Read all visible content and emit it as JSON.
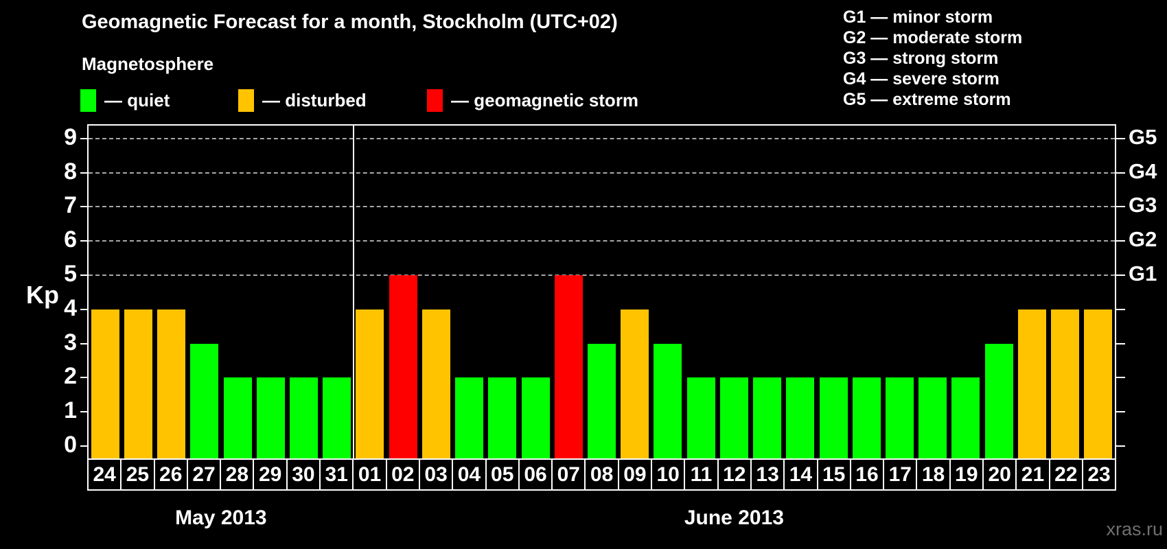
{
  "title": "Geomagnetic Forecast for a month, Stockholm (UTC+02)",
  "watermark": "xras.ru",
  "magnetosphere_legend": {
    "heading": "Magnetosphere",
    "items": [
      {
        "key": "quiet",
        "label": "— quiet"
      },
      {
        "key": "disturbed",
        "label": "— disturbed"
      },
      {
        "key": "storm",
        "label": "— geomagnetic storm"
      }
    ]
  },
  "g_scale_legend": [
    "G1 — minor storm",
    "G2 — moderate storm",
    "G3 — strong storm",
    "G4 — severe storm",
    "G5 — extreme storm"
  ],
  "colors": {
    "quiet": "#00ff00",
    "disturbed": "#ffc300",
    "storm": "#ff0000",
    "background": "#000000",
    "axis": "#ffffff",
    "grid": "#a8a8a8",
    "watermark": "#6f6f6f"
  },
  "chart_data": {
    "type": "bar",
    "title": "Geomagnetic Forecast for a month, Stockholm (UTC+02)",
    "ylabel": "Kp",
    "xlabel": "",
    "ylim": [
      0,
      9
    ],
    "grid": "horizontal-dashed",
    "yticks_left": [
      0,
      1,
      2,
      3,
      4,
      5,
      6,
      7,
      8,
      9
    ],
    "gridlines_kp": [
      5,
      6,
      7,
      8,
      9
    ],
    "right_axis": [
      {
        "kp": 5,
        "label": "G1"
      },
      {
        "kp": 6,
        "label": "G2"
      },
      {
        "kp": 7,
        "label": "G3"
      },
      {
        "kp": 8,
        "label": "G4"
      },
      {
        "kp": 9,
        "label": "G5"
      }
    ],
    "months": [
      {
        "label": "May 2013",
        "days": 8
      },
      {
        "label": "June 2013",
        "days": 23
      }
    ],
    "categories": [
      "24",
      "25",
      "26",
      "27",
      "28",
      "29",
      "30",
      "31",
      "01",
      "02",
      "03",
      "04",
      "05",
      "06",
      "07",
      "08",
      "09",
      "10",
      "11",
      "12",
      "13",
      "14",
      "15",
      "16",
      "17",
      "18",
      "19",
      "20",
      "21",
      "22",
      "23"
    ],
    "values": [
      4,
      4,
      4,
      3,
      2,
      2,
      2,
      2,
      4,
      5,
      4,
      2,
      2,
      2,
      5,
      3,
      4,
      3,
      2,
      2,
      2,
      2,
      2,
      2,
      2,
      2,
      2,
      3,
      4,
      4,
      4
    ],
    "statuses": [
      "disturbed",
      "disturbed",
      "disturbed",
      "quiet",
      "quiet",
      "quiet",
      "quiet",
      "quiet",
      "disturbed",
      "storm",
      "disturbed",
      "quiet",
      "quiet",
      "quiet",
      "storm",
      "quiet",
      "disturbed",
      "quiet",
      "quiet",
      "quiet",
      "quiet",
      "quiet",
      "quiet",
      "quiet",
      "quiet",
      "quiet",
      "quiet",
      "quiet",
      "disturbed",
      "disturbed",
      "disturbed"
    ]
  }
}
